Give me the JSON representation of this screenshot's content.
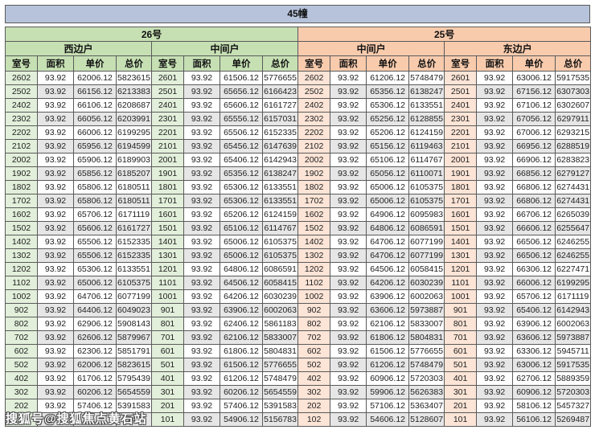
{
  "title": "45幢",
  "watermark": "搜狐号@搜狐焦点黄石站",
  "column_headers": [
    "室号",
    "面积",
    "单价",
    "总价"
  ],
  "colors": {
    "title_bar": "#b7c3da",
    "green_header": "#c6e0b4",
    "green_room_cell": "#e2efda",
    "orange_header": "#f8cbad",
    "orange_room_cell": "#fce4d6",
    "stripe_row": "#e7e6e6",
    "border": "#5a5a5a"
  },
  "buildings": [
    {
      "label": "26号",
      "theme": "green",
      "units": [
        {
          "name": "西边户",
          "rows": [
            [
              "2602",
              "93.92",
              "62006.12",
              "5823615"
            ],
            [
              "2502",
              "93.92",
              "66156.12",
              "6213383"
            ],
            [
              "2402",
              "93.92",
              "66106.12",
              "6208687"
            ],
            [
              "2302",
              "93.92",
              "66056.12",
              "6203991"
            ],
            [
              "2202",
              "93.92",
              "66006.12",
              "6199295"
            ],
            [
              "2102",
              "93.92",
              "65956.12",
              "6194599"
            ],
            [
              "2002",
              "93.92",
              "65906.12",
              "6189903"
            ],
            [
              "1902",
              "93.92",
              "65856.12",
              "6185207"
            ],
            [
              "1802",
              "93.92",
              "65806.12",
              "6180511"
            ],
            [
              "1702",
              "93.92",
              "65806.12",
              "6180511"
            ],
            [
              "1602",
              "93.92",
              "65706.12",
              "6171119"
            ],
            [
              "1502",
              "93.92",
              "65606.12",
              "6161727"
            ],
            [
              "1402",
              "93.92",
              "65506.12",
              "6152335"
            ],
            [
              "1302",
              "93.92",
              "65506.12",
              "6152335"
            ],
            [
              "1202",
              "93.92",
              "65306.12",
              "6133551"
            ],
            [
              "1102",
              "93.92",
              "65006.12",
              "6105375"
            ],
            [
              "1002",
              "93.92",
              "64706.12",
              "6077199"
            ],
            [
              "902",
              "93.92",
              "64406.12",
              "6049023"
            ],
            [
              "802",
              "93.92",
              "62906.12",
              "5908143"
            ],
            [
              "702",
              "93.92",
              "62606.12",
              "5879967"
            ],
            [
              "602",
              "93.92",
              "62306.12",
              "5851791"
            ],
            [
              "502",
              "93.92",
              "62006.12",
              "5823615"
            ],
            [
              "402",
              "93.92",
              "61706.12",
              "5795439"
            ],
            [
              "302",
              "93.92",
              "60206.12",
              "5654559"
            ],
            [
              "202",
              "93.92",
              "57406.12",
              "5391583"
            ],
            [
              "",
              "",
              "",
              "743"
            ]
          ]
        },
        {
          "name": "中间户",
          "rows": [
            [
              "2601",
              "93.92",
              "61506.12",
              "5776655"
            ],
            [
              "2501",
              "93.92",
              "65656.12",
              "6166423"
            ],
            [
              "2401",
              "93.92",
              "65606.12",
              "6161727"
            ],
            [
              "2301",
              "93.92",
              "65556.12",
              "6157031"
            ],
            [
              "2201",
              "93.92",
              "65506.12",
              "6152335"
            ],
            [
              "2101",
              "93.92",
              "65456.12",
              "6147639"
            ],
            [
              "2001",
              "93.92",
              "65406.12",
              "6142943"
            ],
            [
              "1901",
              "93.92",
              "65356.12",
              "6138247"
            ],
            [
              "1801",
              "93.92",
              "65306.12",
              "6133551"
            ],
            [
              "1701",
              "93.92",
              "65306.12",
              "6133551"
            ],
            [
              "1601",
              "93.92",
              "65206.12",
              "6124159"
            ],
            [
              "1501",
              "93.92",
              "65106.12",
              "6114767"
            ],
            [
              "1401",
              "93.92",
              "65006.12",
              "6105375"
            ],
            [
              "1301",
              "93.92",
              "65006.12",
              "6105375"
            ],
            [
              "1201",
              "93.92",
              "64806.12",
              "6086591"
            ],
            [
              "1101",
              "93.92",
              "64506.12",
              "6058415"
            ],
            [
              "1001",
              "93.92",
              "64206.12",
              "6030239"
            ],
            [
              "901",
              "93.92",
              "63906.12",
              "6002063"
            ],
            [
              "801",
              "93.92",
              "62406.12",
              "5861183"
            ],
            [
              "701",
              "93.92",
              "62106.12",
              "5833007"
            ],
            [
              "601",
              "93.92",
              "61806.12",
              "5804831"
            ],
            [
              "501",
              "93.92",
              "61506.12",
              "5776655"
            ],
            [
              "401",
              "93.92",
              "61206.12",
              "5748479"
            ],
            [
              "301",
              "93.92",
              "60206.12",
              "5654559"
            ],
            [
              "201",
              "93.92",
              "57406.12",
              "5391583"
            ],
            [
              "101",
              "93.92",
              "54906.12",
              "5156783"
            ]
          ]
        }
      ]
    },
    {
      "label": "25号",
      "theme": "orange",
      "units": [
        {
          "name": "中间户",
          "rows": [
            [
              "2602",
              "93.92",
              "61206.12",
              "5748479"
            ],
            [
              "2502",
              "93.92",
              "65356.12",
              "6138247"
            ],
            [
              "2402",
              "93.92",
              "65306.12",
              "6133551"
            ],
            [
              "2302",
              "93.92",
              "65256.12",
              "6128855"
            ],
            [
              "2202",
              "93.92",
              "65206.12",
              "6124159"
            ],
            [
              "2102",
              "93.92",
              "65156.12",
              "6119463"
            ],
            [
              "2002",
              "93.92",
              "65106.12",
              "6114767"
            ],
            [
              "1902",
              "93.92",
              "65056.12",
              "6110071"
            ],
            [
              "1802",
              "93.92",
              "65006.12",
              "6105375"
            ],
            [
              "1702",
              "93.92",
              "65006.12",
              "6105375"
            ],
            [
              "1602",
              "93.92",
              "64906.12",
              "6095983"
            ],
            [
              "1502",
              "93.92",
              "64806.12",
              "6086591"
            ],
            [
              "1402",
              "93.92",
              "64706.12",
              "6077199"
            ],
            [
              "1302",
              "93.92",
              "64706.12",
              "6077199"
            ],
            [
              "1202",
              "93.92",
              "64506.12",
              "6058415"
            ],
            [
              "1102",
              "93.92",
              "64206.12",
              "6030239"
            ],
            [
              "1002",
              "93.92",
              "63906.12",
              "6002063"
            ],
            [
              "902",
              "93.92",
              "63606.12",
              "5973887"
            ],
            [
              "802",
              "93.92",
              "62106.12",
              "5833007"
            ],
            [
              "702",
              "93.92",
              "61806.12",
              "5804831"
            ],
            [
              "602",
              "93.92",
              "61506.12",
              "5776655"
            ],
            [
              "502",
              "93.92",
              "61206.12",
              "5748479"
            ],
            [
              "402",
              "93.92",
              "60906.12",
              "5720303"
            ],
            [
              "302",
              "93.92",
              "59906.12",
              "5626383"
            ],
            [
              "202",
              "93.92",
              "57106.12",
              "5363407"
            ],
            [
              "102",
              "93.92",
              "54606.12",
              "5128607"
            ]
          ]
        },
        {
          "name": "东边户",
          "rows": [
            [
              "2601",
              "93.92",
              "63006.12",
              "5917535"
            ],
            [
              "2501",
              "93.92",
              "67156.12",
              "6307303"
            ],
            [
              "2401",
              "93.92",
              "67106.12",
              "6302607"
            ],
            [
              "2301",
              "93.92",
              "67056.12",
              "6297911"
            ],
            [
              "2201",
              "93.92",
              "67006.12",
              "6293215"
            ],
            [
              "2101",
              "93.92",
              "66956.12",
              "6288519"
            ],
            [
              "2001",
              "93.92",
              "66906.12",
              "6283823"
            ],
            [
              "1901",
              "93.92",
              "66856.12",
              "6279127"
            ],
            [
              "1801",
              "93.92",
              "66806.12",
              "6274431"
            ],
            [
              "1701",
              "93.92",
              "66806.12",
              "6274431"
            ],
            [
              "1601",
              "93.92",
              "66706.12",
              "6265039"
            ],
            [
              "1501",
              "93.92",
              "66606.12",
              "6255647"
            ],
            [
              "1401",
              "93.92",
              "66506.12",
              "6246255"
            ],
            [
              "1301",
              "93.92",
              "66506.12",
              "6246255"
            ],
            [
              "1201",
              "93.92",
              "66306.12",
              "6227471"
            ],
            [
              "1101",
              "93.92",
              "66006.12",
              "6199295"
            ],
            [
              "1001",
              "93.92",
              "65706.12",
              "6171119"
            ],
            [
              "901",
              "93.92",
              "65406.12",
              "6142943"
            ],
            [
              "801",
              "93.92",
              "63906.12",
              "6002063"
            ],
            [
              "701",
              "93.92",
              "63606.12",
              "5973887"
            ],
            [
              "601",
              "93.92",
              "63306.12",
              "5945711"
            ],
            [
              "501",
              "93.92",
              "63006.12",
              "5917535"
            ],
            [
              "401",
              "93.92",
              "62706.12",
              "5889359"
            ],
            [
              "301",
              "93.92",
              "60906.12",
              "5720303"
            ],
            [
              "201",
              "93.92",
              "58106.12",
              "5457327"
            ],
            [
              "101",
              "93.92",
              "56106.12",
              "5269487"
            ]
          ]
        }
      ]
    }
  ]
}
